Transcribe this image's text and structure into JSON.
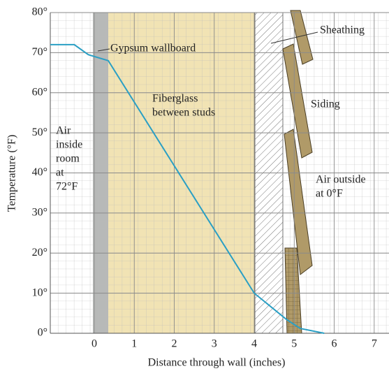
{
  "chart_data": {
    "type": "line",
    "x_label": "Distance through wall (inches)",
    "y_label": "Temperature (°F)",
    "x": [
      -1.1,
      -0.5,
      -0.15,
      0.35,
      4.0,
      4.8,
      5.15,
      5.75
    ],
    "series": [
      {
        "color": "#2a9fc4",
        "values": [
          72,
          72,
          69.5,
          68,
          10,
          3.5,
          1.2,
          0
        ]
      }
    ],
    "xlim": [
      -1.1,
      7.37
    ],
    "ylim": [
      0,
      80
    ],
    "xticks": [
      0,
      1,
      2,
      3,
      4,
      5,
      6,
      7
    ],
    "yticks": [
      {
        "value": 0,
        "label": "0°"
      },
      {
        "value": 10,
        "label": "10°"
      },
      {
        "value": 20,
        "label": "20°"
      },
      {
        "value": 30,
        "label": "30°"
      },
      {
        "value": 40,
        "label": "40°"
      },
      {
        "value": 50,
        "label": "50°"
      },
      {
        "value": 60,
        "label": "60°"
      },
      {
        "value": 70,
        "label": "70°"
      },
      {
        "value": 80,
        "label": "80°"
      }
    ],
    "grid": true,
    "annotations": [
      {
        "lines": [
          "Gypsum wallboard"
        ]
      },
      {
        "lines": [
          "Fiberglass",
          "between studs"
        ]
      },
      {
        "lines": [
          "Sheathing"
        ]
      },
      {
        "lines": [
          "Siding"
        ]
      },
      {
        "lines": [
          "Air",
          "inside",
          "room",
          "at",
          "72°F"
        ]
      },
      {
        "lines": [
          "Air outside",
          "at 0°F"
        ]
      }
    ]
  }
}
